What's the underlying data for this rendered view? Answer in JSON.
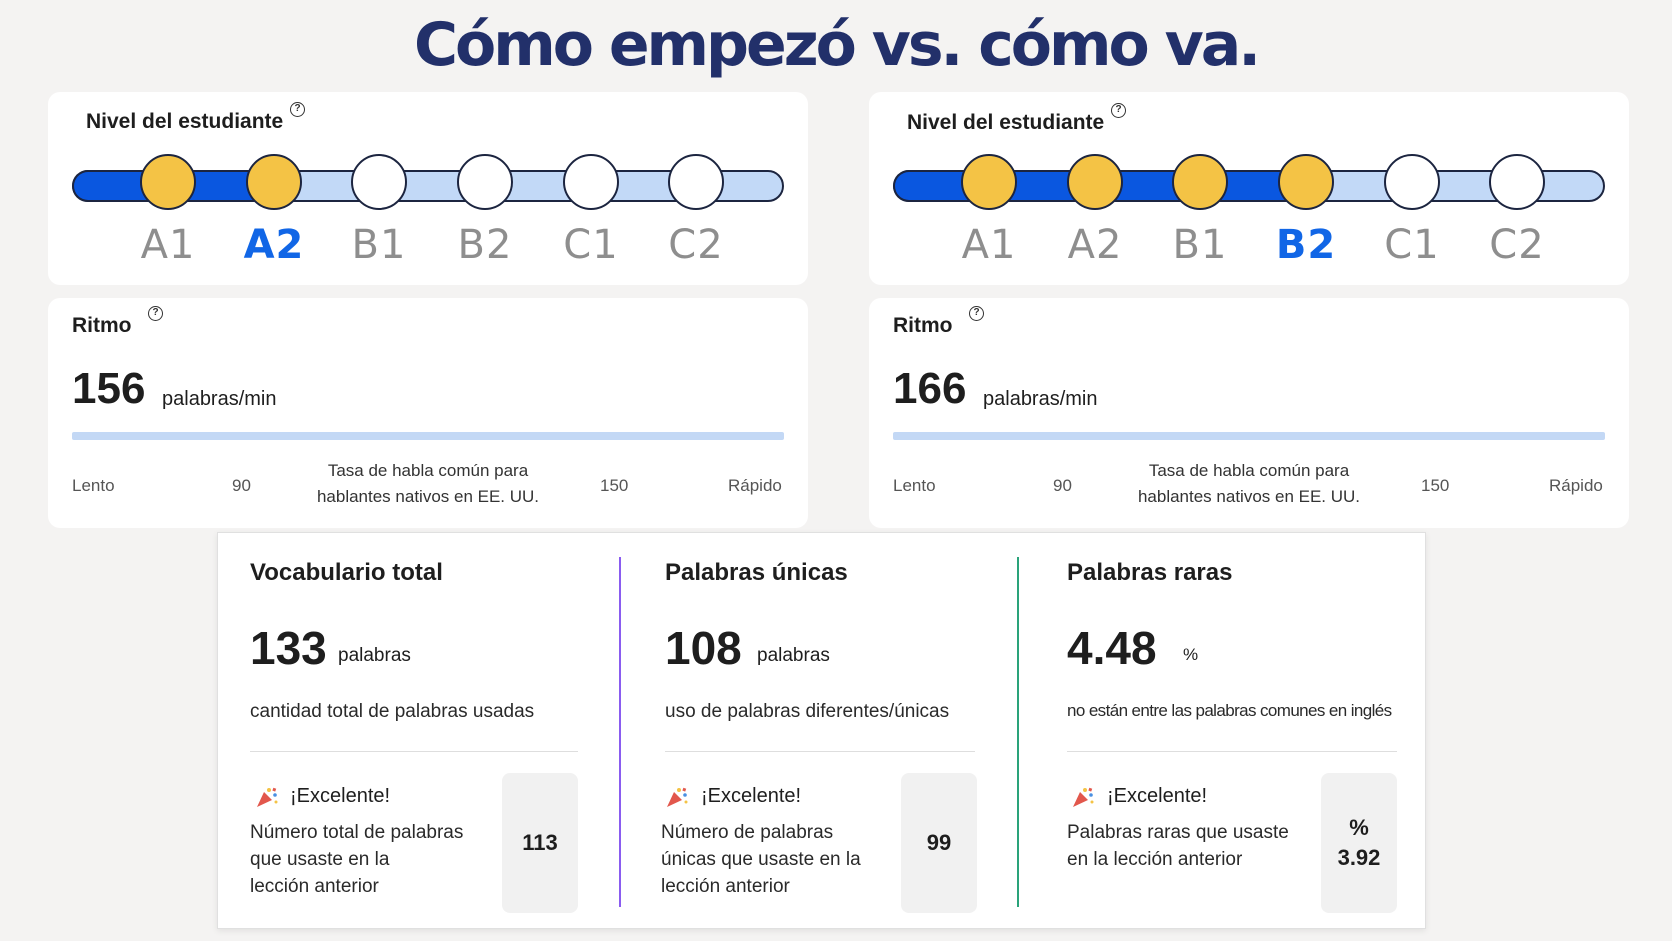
{
  "title": "Cómo empezó vs. cómo va.",
  "colors": {
    "title": "#22306a",
    "track_fill": "#0a57e0",
    "track_empty": "#c2d9f7",
    "dot_filled": "#f4c345",
    "current_level": "#1166e6",
    "divider_purple": "#8a5cf0",
    "divider_green": "#2aa37a"
  },
  "levels": [
    "A1",
    "A2",
    "B1",
    "B2",
    "C1",
    "C2"
  ],
  "before": {
    "level_heading": "Nivel del estudiante",
    "current_level": "A2",
    "pace_heading": "Ritmo",
    "pace_value": "156",
    "pace_unit": "palabras/min"
  },
  "after": {
    "level_heading": "Nivel del estudiante",
    "current_level": "B2",
    "pace_heading": "Ritmo",
    "pace_value": "166",
    "pace_unit": "palabras/min"
  },
  "pace_scale": {
    "slow": "Lento",
    "low": "90",
    "center_line1": "Tasa de habla común para",
    "center_line2": "hablantes nativos en EE. UU.",
    "high": "150",
    "fast": "Rápido"
  },
  "help_icon": "question-circle-icon",
  "stats": [
    {
      "title": "Vocabulario total",
      "value": "133",
      "unit": "palabras",
      "description": "cantidad total de palabras usadas",
      "praise": "¡Excelente!",
      "prev_line1": "Número total de palabras",
      "prev_line2": "que usaste en la",
      "prev_line3": "lección anterior",
      "prev_value": "113",
      "prev_unit": ""
    },
    {
      "title": "Palabras únicas",
      "value": "108",
      "unit": "palabras",
      "description": "uso de palabras diferentes/únicas",
      "praise": "¡Excelente!",
      "prev_line1": "Número de palabras",
      "prev_line2": "únicas que usaste en la",
      "prev_line3": "lección anterior",
      "prev_value": "99",
      "prev_unit": ""
    },
    {
      "title": "Palabras raras",
      "value": "4.48",
      "unit": "%",
      "description": "no están entre las palabras comunes en inglés",
      "praise": "¡Excelente!",
      "prev_line1": "Palabras raras que usaste",
      "prev_line2": "en la lección anterior",
      "prev_line3": "",
      "prev_value": "3.92",
      "prev_unit": "%"
    }
  ]
}
